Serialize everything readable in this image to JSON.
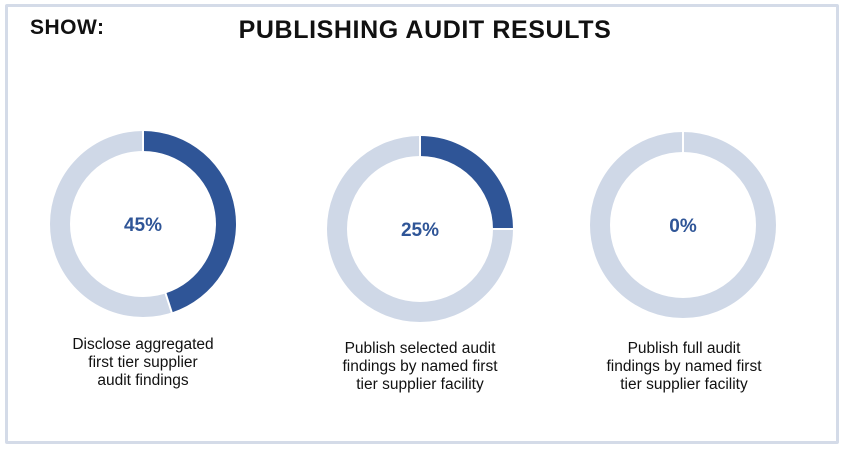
{
  "header": {
    "show_label": "SHOW:",
    "title": "PUBLISHING AUDIT RESULTS"
  },
  "colors": {
    "filled": "#2f5597",
    "track": "#cfd8e7",
    "value_text": "#2f5597"
  },
  "chart_data": [
    {
      "type": "pie",
      "variant": "donut",
      "value": 45,
      "value_label": "45%",
      "caption_lines": [
        "Disclose aggregated",
        "first tier supplier",
        "audit findings"
      ]
    },
    {
      "type": "pie",
      "variant": "donut",
      "value": 25,
      "value_label": "25%",
      "caption_lines": [
        "Publish selected audit",
        "findings by named first",
        "tier supplier facility"
      ]
    },
    {
      "type": "pie",
      "variant": "donut",
      "value": 0,
      "value_label": "0%",
      "caption_lines": [
        "Publish full audit",
        "findings by named first",
        "tier supplier facility"
      ]
    }
  ]
}
